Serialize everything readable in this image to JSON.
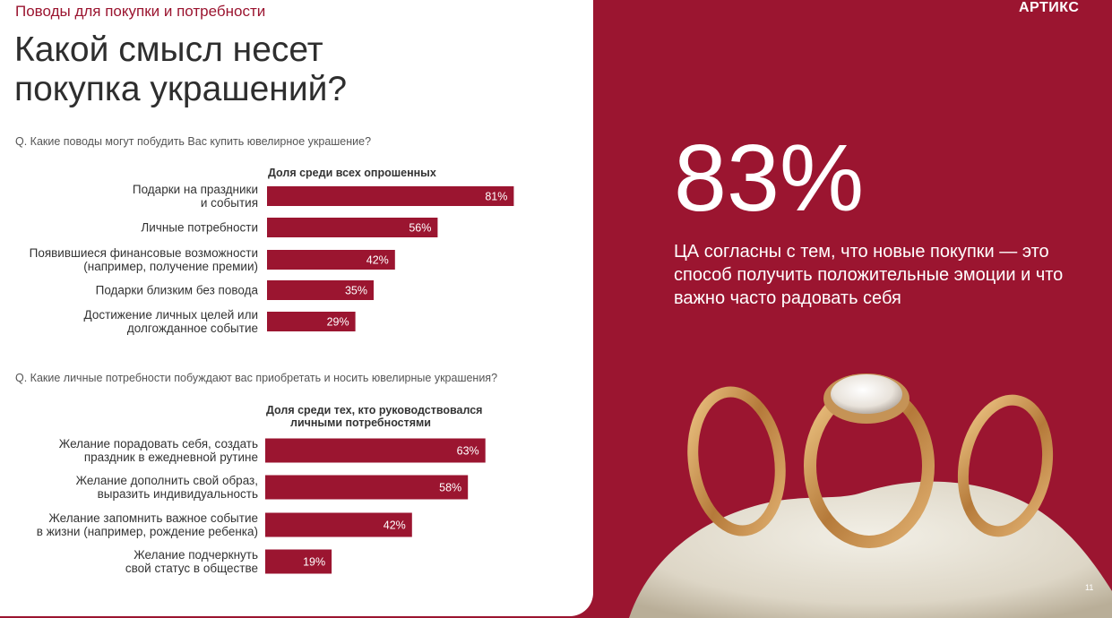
{
  "section_label": "Поводы для покупки и потребности",
  "title_line1": "Какой смысл несет",
  "title_line2": "покупка украшений?",
  "logo": "АРТИКС",
  "stat": {
    "value": "83%",
    "description": "ЦА согласны с тем, что новые покупки — это способ получить положительные эмоции и что важно часто радовать себя"
  },
  "page_number": "11",
  "colors": {
    "accent": "#9b1530",
    "text": "#2e2e2e"
  },
  "chart_data": [
    {
      "type": "bar",
      "question": "Q. Какие поводы могут побудить Вас купить ювелирное украшение?",
      "column_header": "Доля среди всех опрошенных",
      "categories": [
        [
          "Подарки на праздники",
          "и события"
        ],
        [
          "Личные потребности"
        ],
        [
          "Появившиеся финансовые возможности",
          "(например, получение премии)"
        ],
        [
          "Подарки близким без повода"
        ],
        [
          "Достижение личных целей или",
          "долгожданное событие"
        ]
      ],
      "values": [
        81,
        56,
        42,
        35,
        29
      ],
      "value_labels": [
        "81%",
        "56%",
        "42%",
        "35%",
        "29%"
      ]
    },
    {
      "type": "bar",
      "question": "Q.  Какие личные потребности побуждают вас приобретать и носить ювелирные украшения?",
      "column_header": [
        "Доля среди тех, кто руководствовался",
        "личными потребностями"
      ],
      "categories": [
        [
          "Желание порадовать себя, создать",
          "праздник в ежедневной рутине"
        ],
        [
          "Желание дополнить свой образ,",
          "выразить индивидуальность"
        ],
        [
          "Желание запомнить важное событие",
          "в жизни (например, рождение ребенка)"
        ],
        [
          "Желание подчеркнуть",
          "свой статус в обществе"
        ]
      ],
      "values": [
        63,
        58,
        42,
        19
      ],
      "value_labels": [
        "63%",
        "58%",
        "42%",
        "19%"
      ]
    }
  ]
}
